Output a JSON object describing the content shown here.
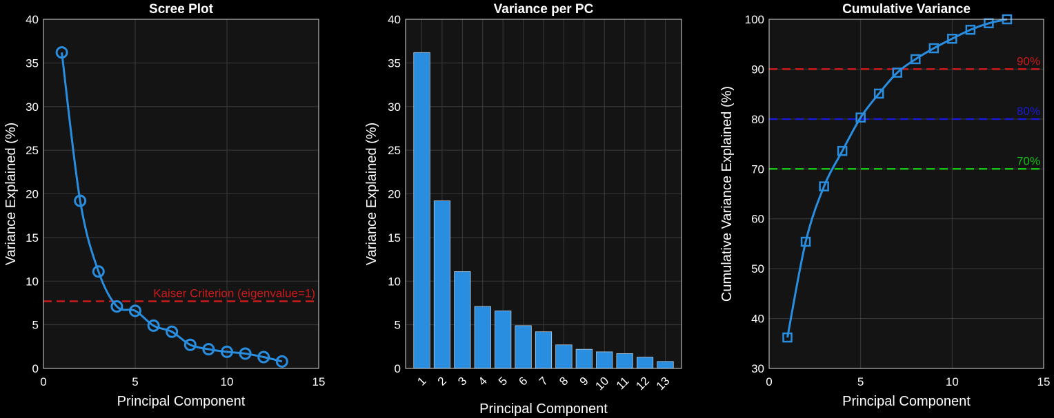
{
  "colors": {
    "background": "#000000",
    "axes_bg": "#141414",
    "grid": "#3a3a3a",
    "text": "#ffffff",
    "series": "#2a8ee0",
    "kaiser": "#cc1b1b",
    "t90": "#cc1b1b",
    "t80": "#1a1ad6",
    "t70": "#18c018"
  },
  "chart_data": [
    {
      "type": "line",
      "title": "Scree Plot",
      "xlabel": "Principal Component",
      "ylabel": "Variance Explained (%)",
      "xlim": [
        0,
        15
      ],
      "ylim": [
        0,
        40
      ],
      "xticks": [
        0,
        5,
        10,
        15
      ],
      "yticks": [
        0,
        5,
        10,
        15,
        20,
        25,
        30,
        35,
        40
      ],
      "grid": true,
      "marker": "circle",
      "series": [
        {
          "x": [
            1,
            2,
            3,
            4,
            5,
            6,
            7,
            8,
            9,
            10,
            11,
            12,
            13
          ],
          "values": [
            36.2,
            19.2,
            11.1,
            7.1,
            6.6,
            4.9,
            4.2,
            2.7,
            2.2,
            1.9,
            1.7,
            1.3,
            0.8
          ]
        }
      ],
      "reference_lines": [
        {
          "y": 7.69,
          "label": "Kaiser Criterion (eigenvalue=1)",
          "color_key": "kaiser"
        }
      ]
    },
    {
      "type": "bar",
      "title": "Variance per PC",
      "xlabel": "Principal Component",
      "ylabel": "Variance Explained (%)",
      "categories": [
        "1",
        "2",
        "3",
        "4",
        "5",
        "6",
        "7",
        "8",
        "9",
        "10",
        "11",
        "12",
        "13"
      ],
      "values": [
        36.2,
        19.2,
        11.1,
        7.1,
        6.6,
        4.9,
        4.2,
        2.7,
        2.2,
        1.9,
        1.7,
        1.3,
        0.8
      ],
      "ylim": [
        0,
        40
      ],
      "yticks": [
        0,
        5,
        10,
        15,
        20,
        25,
        30,
        35,
        40
      ],
      "grid": true
    },
    {
      "type": "line",
      "title": "Cumulative Variance",
      "xlabel": "Principal Component",
      "ylabel": "Cumulative Variance Explained (%)",
      "xlim": [
        0,
        15
      ],
      "ylim": [
        30,
        100
      ],
      "xticks": [
        0,
        5,
        10,
        15
      ],
      "yticks": [
        30,
        40,
        50,
        60,
        70,
        80,
        90,
        100
      ],
      "grid": true,
      "marker": "square",
      "series": [
        {
          "x": [
            1,
            2,
            3,
            4,
            5,
            6,
            7,
            8,
            9,
            10,
            11,
            12,
            13
          ],
          "values": [
            36.2,
            55.4,
            66.5,
            73.6,
            80.3,
            85.1,
            89.3,
            92.0,
            94.2,
            96.1,
            97.9,
            99.2,
            100.0
          ]
        }
      ],
      "reference_lines": [
        {
          "y": 90,
          "label": "90%",
          "color_key": "t90"
        },
        {
          "y": 80,
          "label": "80%",
          "color_key": "t80"
        },
        {
          "y": 70,
          "label": "70%",
          "color_key": "t70"
        }
      ]
    }
  ]
}
